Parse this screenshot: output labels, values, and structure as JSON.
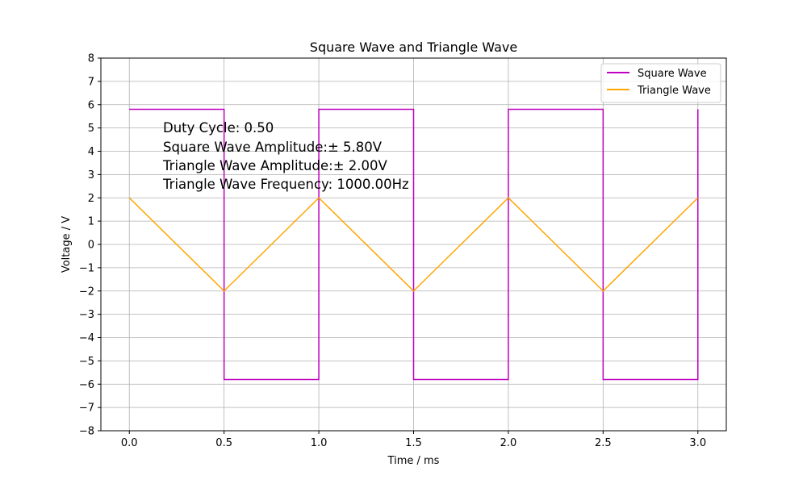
{
  "chart_data": {
    "type": "line",
    "title": "Square Wave and Triangle Wave",
    "xlabel": "Time / ms",
    "ylabel": "Voltage / V",
    "xlim": [
      -0.15,
      3.15
    ],
    "ylim": [
      -8,
      8
    ],
    "xticks": [
      0.0,
      0.5,
      1.0,
      1.5,
      2.0,
      2.5,
      3.0
    ],
    "xtick_labels": [
      "0.0",
      "0.5",
      "1.0",
      "1.5",
      "2.0",
      "2.5",
      "3.0"
    ],
    "yticks": [
      -8,
      -7,
      -6,
      -5,
      -4,
      -3,
      -2,
      -1,
      0,
      1,
      2,
      3,
      4,
      5,
      6,
      7,
      8
    ],
    "ytick_labels": [
      "−8",
      "−7",
      "−6",
      "−5",
      "−4",
      "−3",
      "−2",
      "−1",
      "0",
      "1",
      "2",
      "3",
      "4",
      "5",
      "6",
      "7",
      "8"
    ],
    "grid": true,
    "legend_position": "top-right",
    "series": [
      {
        "name": "Square Wave",
        "color": "#bf00bf",
        "x": [
          0.0,
          0.5,
          0.5,
          1.0,
          1.0,
          1.5,
          1.5,
          2.0,
          2.0,
          2.5,
          2.5,
          3.0,
          3.0
        ],
        "y": [
          5.8,
          5.8,
          -5.8,
          -5.8,
          5.8,
          5.8,
          -5.8,
          -5.8,
          5.8,
          5.8,
          -5.8,
          -5.8,
          5.8
        ]
      },
      {
        "name": "Triangle Wave",
        "color": "#ffa500",
        "x": [
          0.0,
          0.5,
          1.0,
          1.5,
          2.0,
          2.5,
          3.0
        ],
        "y": [
          2.0,
          -2.0,
          2.0,
          -2.0,
          2.0,
          -2.0,
          2.0
        ]
      }
    ],
    "annotations": [
      "Duty Cycle: 0.50",
      "Square Wave Amplitude:± 5.80V",
      "Triangle Wave Amplitude:± 2.00V",
      "Triangle Wave Frequency: 1000.00Hz"
    ]
  }
}
